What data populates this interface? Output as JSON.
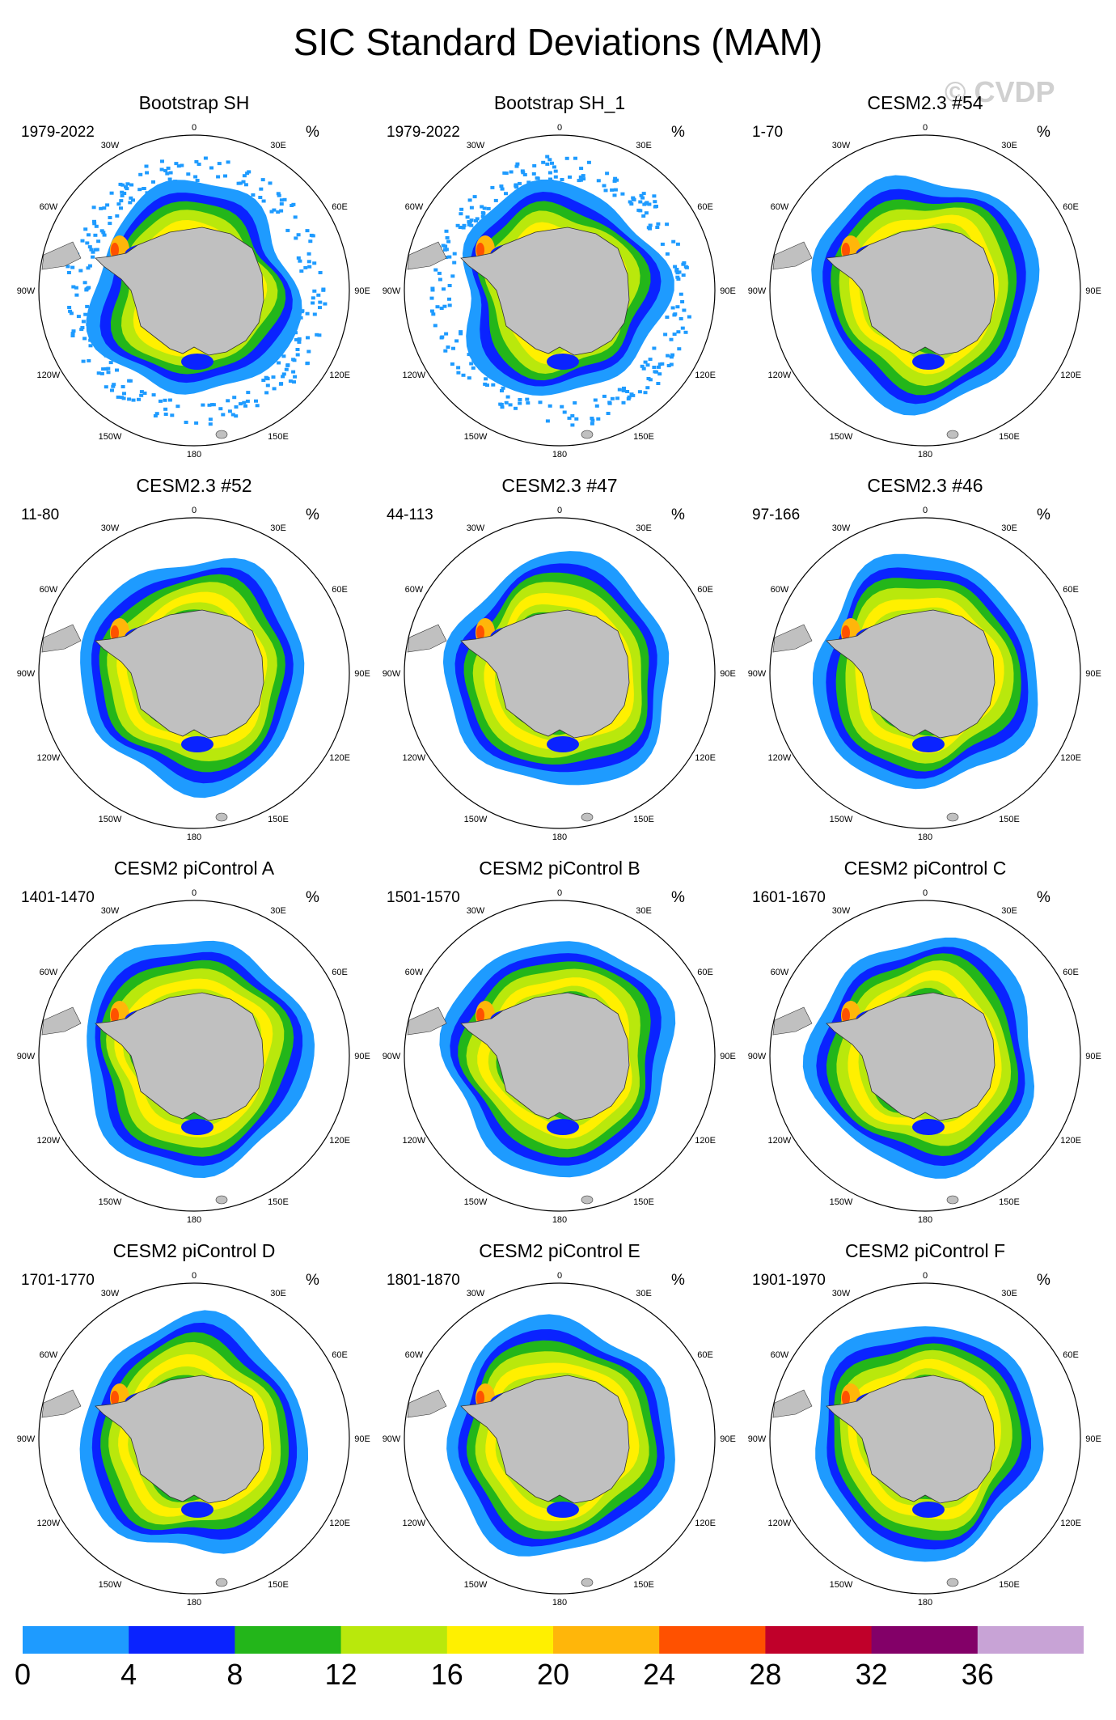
{
  "figure": {
    "title": "SIC Standard Deviations (MAM)",
    "watermark": "© CVDP",
    "units": "%"
  },
  "colors": {
    "land": "#c0c0c0",
    "circle": "#000000"
  },
  "chart_data": {
    "type": "polar-map-grid",
    "projection": "south-polar-stereographic",
    "longitude_labels": [
      "0",
      "30E",
      "60E",
      "90E",
      "120E",
      "150E",
      "180",
      "150W",
      "120W",
      "90W",
      "60W",
      "30W"
    ],
    "colorbar": {
      "levels": [
        0,
        4,
        8,
        12,
        16,
        20,
        24,
        28,
        32,
        36
      ],
      "tick_labels": [
        "0",
        "4",
        "8",
        "12",
        "16",
        "20",
        "24",
        "28",
        "32",
        "36"
      ],
      "colors": [
        "#1e9bff",
        "#0a23ff",
        "#23b61a",
        "#b9e80c",
        "#fff000",
        "#ffb60a",
        "#ff5100",
        "#c0002a",
        "#830068",
        "#c8a3d6"
      ]
    },
    "panels": [
      {
        "title": "Bootstrap SH",
        "years": "1979-2022",
        "units": "%",
        "style": "obs"
      },
      {
        "title": "Bootstrap SH_1",
        "years": "1979-2022",
        "units": "%",
        "style": "obs"
      },
      {
        "title": "CESM2.3 #54",
        "years": "1-70",
        "units": "%",
        "style": "model"
      },
      {
        "title": "CESM2.3 #52",
        "years": "11-80",
        "units": "%",
        "style": "model"
      },
      {
        "title": "CESM2.3 #47",
        "years": "44-113",
        "units": "%",
        "style": "model"
      },
      {
        "title": "CESM2.3 #46",
        "years": "97-166",
        "units": "%",
        "style": "model"
      },
      {
        "title": "CESM2 piControl A",
        "years": "1401-1470",
        "units": "%",
        "style": "control"
      },
      {
        "title": "CESM2 piControl B",
        "years": "1501-1570",
        "units": "%",
        "style": "control"
      },
      {
        "title": "CESM2 piControl C",
        "years": "1601-1670",
        "units": "%",
        "style": "control"
      },
      {
        "title": "CESM2 piControl D",
        "years": "1701-1770",
        "units": "%",
        "style": "control"
      },
      {
        "title": "CESM2 piControl E",
        "years": "1801-1870",
        "units": "%",
        "style": "control"
      },
      {
        "title": "CESM2 piControl F",
        "years": "1901-1970",
        "units": "%",
        "style": "control"
      }
    ]
  }
}
